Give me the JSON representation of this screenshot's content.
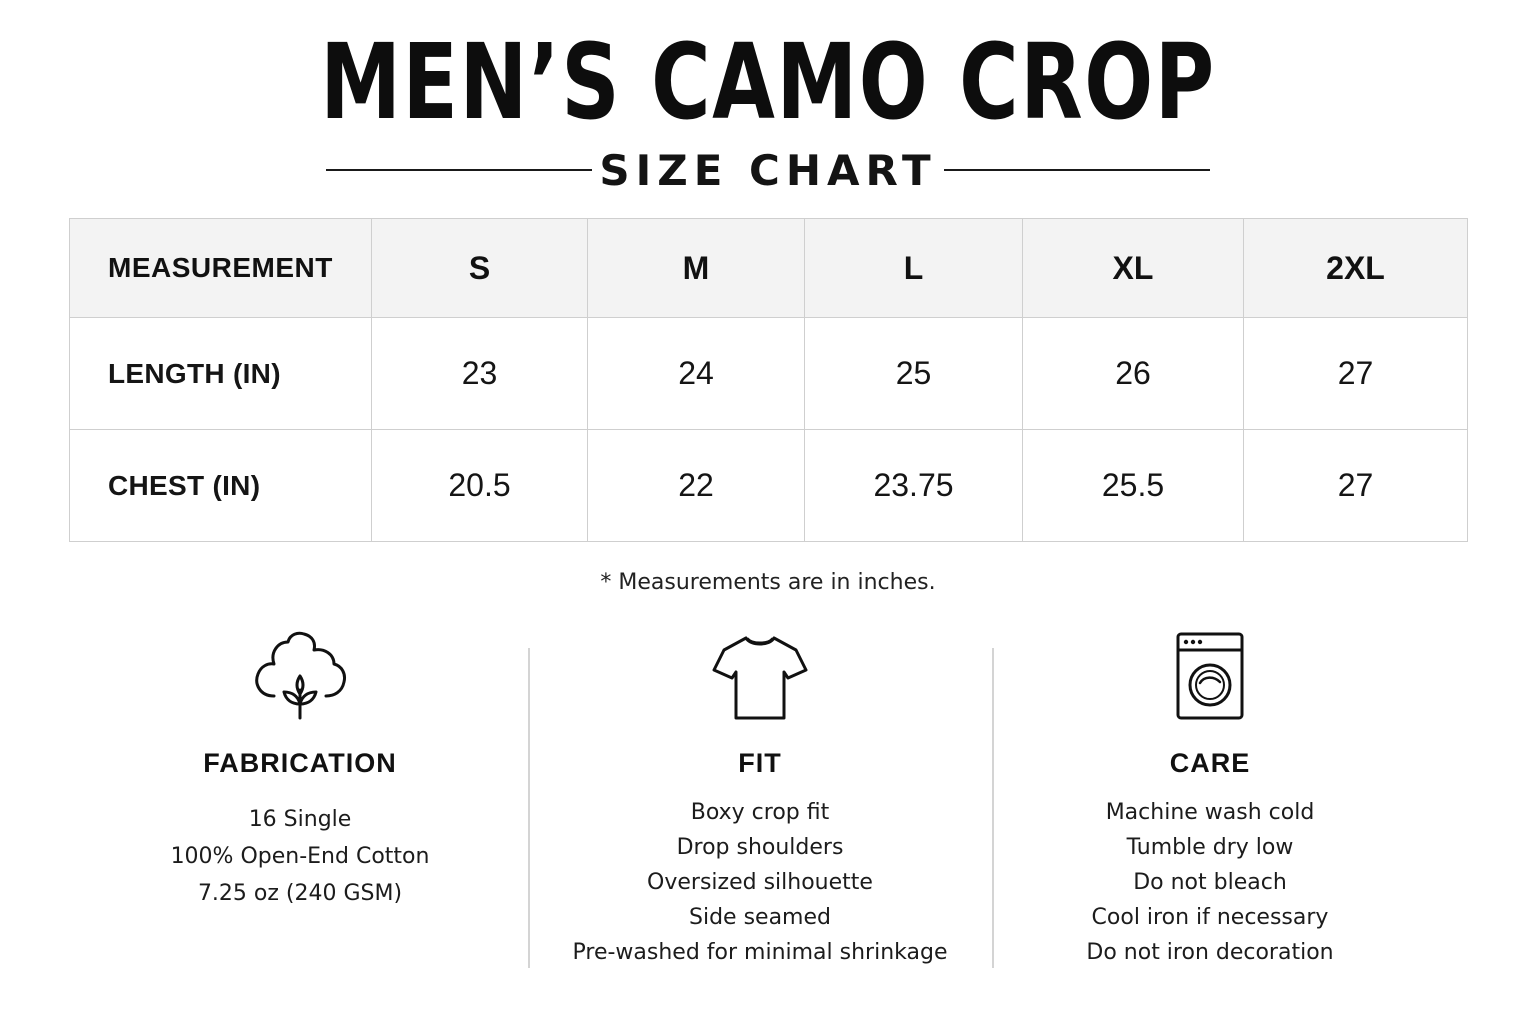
{
  "header": {
    "title": "MEN’S CAMO CROP",
    "subtitle": "SIZE CHART"
  },
  "table": {
    "corner_label": "MEASUREMENT",
    "sizes": [
      "S",
      "M",
      "L",
      "XL",
      "2XL"
    ],
    "rows": [
      {
        "label": "LENGTH (IN)",
        "values": [
          "23",
          "24",
          "25",
          "26",
          "27"
        ]
      },
      {
        "label": "CHEST (IN)",
        "values": [
          "20.5",
          "22",
          "23.75",
          "25.5",
          "27"
        ]
      }
    ]
  },
  "note": "* Measurements are in inches.",
  "sections": {
    "fabrication": {
      "icon": "cotton-icon",
      "heading": "FABRICATION",
      "items": [
        "16 Single",
        "100% Open-End Cotton",
        "7.25 oz (240 GSM)"
      ]
    },
    "fit": {
      "icon": "tshirt-icon",
      "heading": "FIT",
      "items": [
        "Boxy crop fit",
        "Drop shoulders",
        "Oversized silhouette",
        "Side seamed",
        "Pre-washed for minimal shrinkage"
      ]
    },
    "care": {
      "icon": "washing-machine-icon",
      "heading": "CARE",
      "items": [
        "Machine wash cold",
        "Tumble dry low",
        "Do not bleach",
        "Cool iron if necessary",
        "Do not iron decoration"
      ]
    }
  },
  "colors": {
    "text": "#111111",
    "header_fill": "#f3f3f3",
    "border": "#cfcfcf"
  }
}
